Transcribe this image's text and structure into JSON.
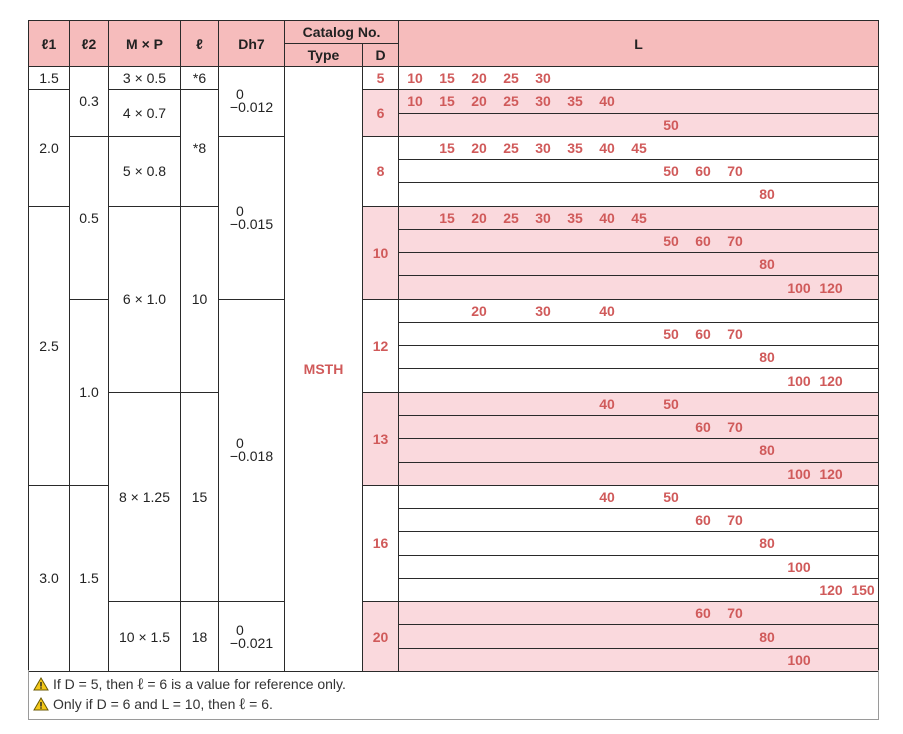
{
  "header": {
    "l1": "ℓ1",
    "l2": "ℓ2",
    "mp": "M × P",
    "ell": "ℓ",
    "dh7": "Dh7",
    "catalog": "Catalog No.",
    "type": "Type",
    "d": "D",
    "L": "L"
  },
  "columns": {
    "l1": [
      "1.5",
      "2.0",
      "2.5",
      "3.0"
    ],
    "l2": [
      "0.3",
      "0.5",
      "1.0",
      "1.5"
    ],
    "mp": [
      "3 × 0.5",
      "4 × 0.7",
      "5 × 0.8",
      "6 × 1.0",
      "8 × 1.25",
      "10 × 1.5"
    ],
    "ell": [
      "*6",
      "*8",
      "10",
      "15",
      "18"
    ],
    "dh7": [
      {
        "upper": "0",
        "lower": "−0.012"
      },
      {
        "upper": "0",
        "lower": "−0.015"
      },
      {
        "upper": "0",
        "lower": "−0.018"
      },
      {
        "upper": "0",
        "lower": "−0.021"
      }
    ],
    "type": "MSTH"
  },
  "groups": [
    {
      "d": "5",
      "highlight": false,
      "rows": [
        [
          "10",
          "15",
          "20",
          "25",
          "30"
        ]
      ]
    },
    {
      "d": "6",
      "highlight": true,
      "rows": [
        [
          "10",
          "15",
          "20",
          "25",
          "30",
          "35",
          "40"
        ],
        [
          "50"
        ]
      ]
    },
    {
      "d": "8",
      "highlight": false,
      "rows": [
        [
          "15",
          "20",
          "25",
          "30",
          "35",
          "40",
          "45"
        ],
        [
          "50",
          "60",
          "70"
        ],
        [
          "80"
        ]
      ]
    },
    {
      "d": "10",
      "highlight": true,
      "rows": [
        [
          "15",
          "20",
          "25",
          "30",
          "35",
          "40",
          "45"
        ],
        [
          "50",
          "60",
          "70"
        ],
        [
          "80"
        ],
        [
          "100",
          "120"
        ]
      ]
    },
    {
      "d": "12",
      "highlight": false,
      "rows": [
        [
          "20",
          "30",
          "40"
        ],
        [
          "50",
          "60",
          "70"
        ],
        [
          "80"
        ],
        [
          "100",
          "120"
        ]
      ]
    },
    {
      "d": "13",
      "highlight": true,
      "rows": [
        [
          "40",
          "50"
        ],
        [
          "60",
          "70"
        ],
        [
          "80"
        ],
        [
          "100",
          "120"
        ]
      ]
    },
    {
      "d": "16",
      "highlight": false,
      "rows": [
        [
          "40",
          "50"
        ],
        [
          "60",
          "70"
        ],
        [
          "80"
        ],
        [
          "100"
        ],
        [
          "120",
          "150"
        ]
      ]
    },
    {
      "d": "20",
      "highlight": true,
      "rows": [
        [
          "60",
          "70"
        ],
        [
          "80"
        ],
        [
          "100"
        ]
      ]
    }
  ],
  "notes": [
    {
      "icon": "warning-icon",
      "before": "If D = 5, then ",
      "symbol": "ℓ",
      "after": " = 6 is a value for reference only."
    },
    {
      "icon": "warning-icon",
      "before": "Only if D = 6 and L = 10, then ",
      "symbol": "ℓ",
      "after": " = 6."
    }
  ],
  "colors": {
    "header": "#f6bcbc",
    "highlight": "#fad9dd",
    "value_text": "#d05a5a",
    "warning": "#f3c81a"
  }
}
